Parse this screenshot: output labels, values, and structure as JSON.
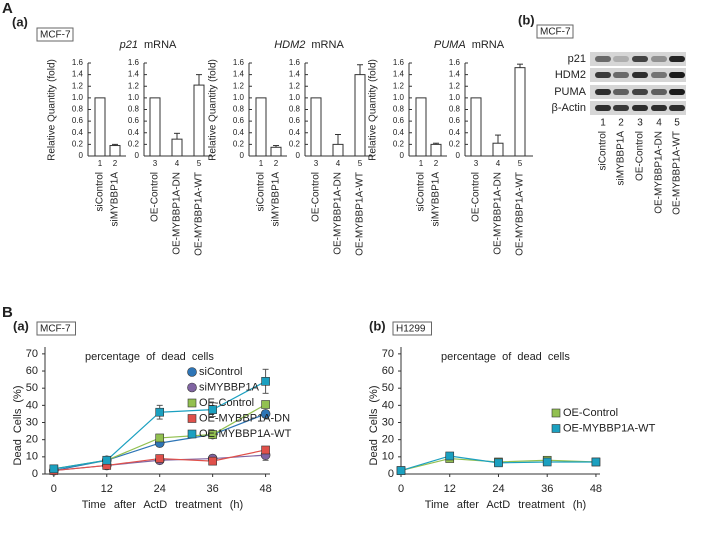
{
  "labels": {
    "A": "A",
    "B": "B"
  },
  "panel_A_a": {
    "label": "(a)",
    "cell_line": "MCF-7"
  },
  "panel_A_b": {
    "label": "(b)",
    "cell_line": "MCF-7",
    "rows": [
      "p21",
      "HDM2",
      "PUMA",
      "β-Actin"
    ],
    "numbers": [
      "1",
      "2",
      "3",
      "4",
      "5"
    ],
    "lanes": [
      "siControl",
      "siMYBBP1A",
      "OE-Control",
      "OE-MYBBP1A-DN",
      "OE-MYBBP1A-WT"
    ]
  },
  "chart_data": [
    {
      "type": "bar",
      "title": {
        "gene": "p21",
        "suffix": "mRNA"
      },
      "ylabel": "Relative Quantity (fold)",
      "categories": [
        "siControl",
        "siMYBBP1A",
        "OE-Control",
        "OE-MYBBP1A-DN",
        "OE-MYBBP1A-WT"
      ],
      "numbers": [
        "1",
        "2",
        "3",
        "4",
        "5"
      ],
      "values": [
        1,
        0.18,
        1,
        0.29,
        1.22
      ],
      "errors": [
        null,
        0.02,
        null,
        0.1,
        0.18
      ],
      "ylim": [
        0,
        1.6
      ],
      "yticks": [
        0,
        0.2,
        0.4,
        0.6,
        0.8,
        {
          "value": 1,
          "label": "1.0"
        },
        1.2,
        1.4,
        1.6
      ],
      "color": "#ffffff"
    },
    {
      "type": "bar",
      "title": {
        "gene": "HDM2",
        "suffix": "mRNA"
      },
      "ylabel": "Relative Quantity (fold)",
      "categories": [
        "siControl",
        "siMYBBP1A",
        "OE-Control",
        "OE-MYBBP1A-DN",
        "OE-MYBBP1A-WT"
      ],
      "numbers": [
        "1",
        "2",
        "3",
        "4",
        "5"
      ],
      "values": [
        1,
        0.15,
        1,
        0.2,
        1.4
      ],
      "errors": [
        null,
        0.03,
        null,
        0.17,
        0.17
      ],
      "ylim": [
        0,
        1.6
      ],
      "yticks": [
        0,
        0.2,
        0.4,
        0.6,
        0.8,
        {
          "value": 1,
          "label": "1.0"
        },
        1.2,
        1.4,
        1.6
      ],
      "color": "#ffffff"
    },
    {
      "type": "bar",
      "title": {
        "gene": "PUMA",
        "suffix": "mRNA"
      },
      "ylabel": "Relative Quantity (fold)",
      "categories": [
        "siControl",
        "siMYBBP1A",
        "OE-Control",
        "OE-MYBBP1A-DN",
        "OE-MYBBP1A-WT"
      ],
      "numbers": [
        "1",
        "2",
        "3",
        "4",
        "5"
      ],
      "values": [
        1,
        0.2,
        1,
        0.22,
        1.52
      ],
      "errors": [
        null,
        0.02,
        null,
        0.14,
        0.06
      ],
      "ylim": [
        0,
        1.6
      ],
      "yticks": [
        0,
        0.2,
        0.4,
        0.6,
        0.8,
        {
          "value": 1,
          "label": "1.0"
        },
        1.2,
        1.4,
        1.6
      ],
      "color": "#ffffff"
    },
    {
      "type": "line",
      "label": "(a)",
      "cell_line": "MCF-7",
      "annotation": "percentage of dead cells",
      "xlabel": "Time after ActD treatment (h)",
      "ylabel": "Dead Cells (%)",
      "x": [
        0,
        12,
        24,
        36,
        48
      ],
      "xlim": [
        -2,
        49
      ],
      "ylim": [
        0,
        74
      ],
      "xticks": [
        0,
        12,
        24,
        36,
        48
      ],
      "yticks": [
        0,
        10,
        20,
        30,
        40,
        50,
        60,
        70
      ],
      "legend": "right",
      "series": [
        {
          "name": "siControl",
          "color": "#2e75b6",
          "marker": "circle",
          "values": [
            2,
            8,
            18,
            23,
            35
          ],
          "errors": [
            1,
            1,
            2,
            1,
            2
          ]
        },
        {
          "name": "siMYBBP1A",
          "color": "#8064a2",
          "marker": "circle",
          "values": [
            2,
            5,
            8,
            9,
            11
          ],
          "errors": [
            1,
            1,
            2,
            2,
            3
          ]
        },
        {
          "name": "OE-Control",
          "color": "#92c050",
          "marker": "square",
          "values": [
            3,
            8,
            21,
            23,
            40.5
          ],
          "errors": [
            1,
            1,
            2,
            1,
            2
          ]
        },
        {
          "name": "OE-MYBBP1A-DN",
          "color": "#e0504a",
          "marker": "square",
          "values": [
            2,
            5,
            9,
            7.5,
            14
          ],
          "errors": [
            1,
            1,
            2,
            2,
            2
          ]
        },
        {
          "name": "OE-MYBBP1A-WT",
          "color": "#1ba0c0",
          "marker": "square",
          "values": [
            3,
            8,
            36,
            37.5,
            54
          ],
          "errors": [
            1,
            1,
            4,
            4,
            7
          ]
        }
      ]
    },
    {
      "type": "line",
      "label": "(b)",
      "cell_line": "H1299",
      "annotation": "percentage of dead cells",
      "xlabel": "Time after ActD treatment (h)",
      "ylabel": "Dead Cells (%)",
      "x": [
        0,
        12,
        24,
        36,
        48
      ],
      "xlim": [
        0,
        49
      ],
      "ylim": [
        0,
        74
      ],
      "xticks": [
        0,
        12,
        24,
        36,
        48
      ],
      "yticks": [
        0,
        10,
        20,
        30,
        40,
        50,
        60,
        70
      ],
      "legend": "right",
      "series": [
        {
          "name": "OE-Control",
          "color": "#92c050",
          "marker": "square",
          "values": [
            2,
            9,
            7,
            8,
            7
          ],
          "errors": [
            1,
            1,
            1,
            1,
            1
          ]
        },
        {
          "name": "OE-MYBBP1A-WT",
          "color": "#1ba0c0",
          "marker": "square",
          "values": [
            2,
            10.5,
            6.5,
            7,
            7
          ],
          "errors": [
            1,
            1,
            1,
            1,
            1
          ]
        }
      ]
    }
  ]
}
